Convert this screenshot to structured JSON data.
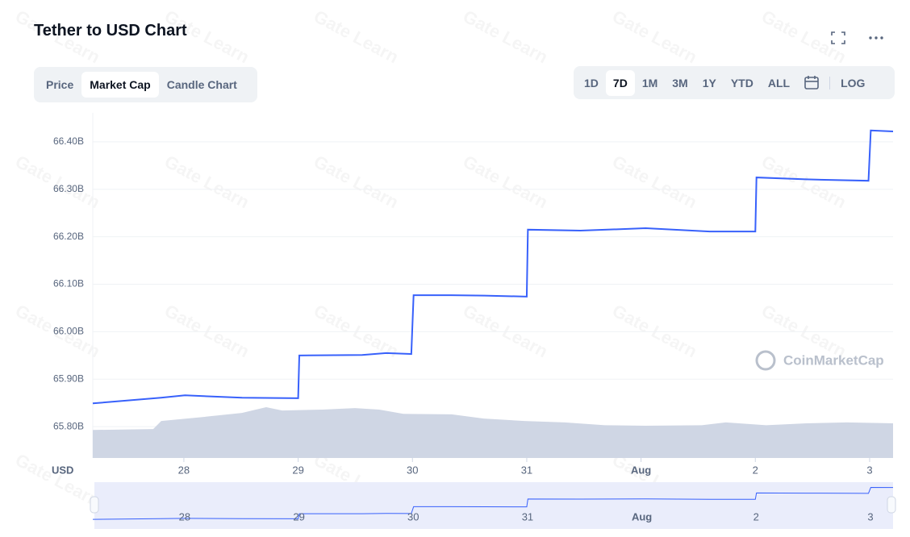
{
  "header": {
    "title": "Tether to USD Chart",
    "tabs": [
      "Price",
      "Market Cap",
      "Candle Chart"
    ],
    "ranges": [
      "1D",
      "7D",
      "1M",
      "3M",
      "1Y",
      "YTD",
      "ALL"
    ],
    "log": "LOG"
  },
  "watermark": "Gate Learn",
  "brand": "CoinMarketCap",
  "chart_data": {
    "type": "line",
    "y_label": "USD",
    "xlim": [
      27.203,
      34.205
    ],
    "xticks": [
      28,
      29,
      30,
      31,
      {
        "value": 32,
        "label": "Aug"
      },
      {
        "value": 33,
        "label": "2"
      },
      {
        "value": 34,
        "label": "3"
      }
    ],
    "ylim": [
      65.734,
      66.461
    ],
    "yticks": [
      {
        "value": 65.8,
        "label": "65.80B"
      },
      {
        "value": 65.9,
        "label": "65.90B"
      },
      {
        "value": 66.0,
        "label": "66.00B"
      },
      {
        "value": 66.1,
        "label": "66.10B"
      },
      {
        "value": 66.2,
        "label": "66.20B"
      },
      {
        "value": 66.3,
        "label": "66.30B"
      },
      {
        "value": 66.4,
        "label": "66.40B"
      }
    ],
    "grid": true,
    "series": [
      {
        "color": "#3861fb",
        "x": [
          27.203,
          27.8,
          28.01,
          28.51,
          29.0,
          29.01,
          29.56,
          29.77,
          29.99,
          30.01,
          30.34,
          30.63,
          31.0,
          31.01,
          31.47,
          32.04,
          32.6,
          33.0,
          33.01,
          33.44,
          33.99,
          34.01,
          34.205
        ],
        "values": [
          65.849,
          65.861,
          65.866,
          65.861,
          65.86,
          65.95,
          65.951,
          65.955,
          65.953,
          66.077,
          66.077,
          66.076,
          66.074,
          66.215,
          66.213,
          66.218,
          66.211,
          66.211,
          66.325,
          66.321,
          66.318,
          66.424,
          66.422
        ]
      }
    ],
    "area": {
      "color": "#cfd6e4",
      "x": [
        27.203,
        27.732,
        27.802,
        28.155,
        28.508,
        28.72,
        28.861,
        29.214,
        29.496,
        29.708,
        29.92,
        30.343,
        30.625,
        30.978,
        31.331,
        31.684,
        32.037,
        32.531,
        32.742,
        33.095,
        33.448,
        33.801,
        34.205
      ],
      "values": [
        65.793,
        65.795,
        65.812,
        65.82,
        65.829,
        65.841,
        65.834,
        65.836,
        65.839,
        65.836,
        65.827,
        65.826,
        65.817,
        65.812,
        65.809,
        65.803,
        65.802,
        65.803,
        65.809,
        65.803,
        65.807,
        65.809,
        65.807
      ]
    }
  }
}
